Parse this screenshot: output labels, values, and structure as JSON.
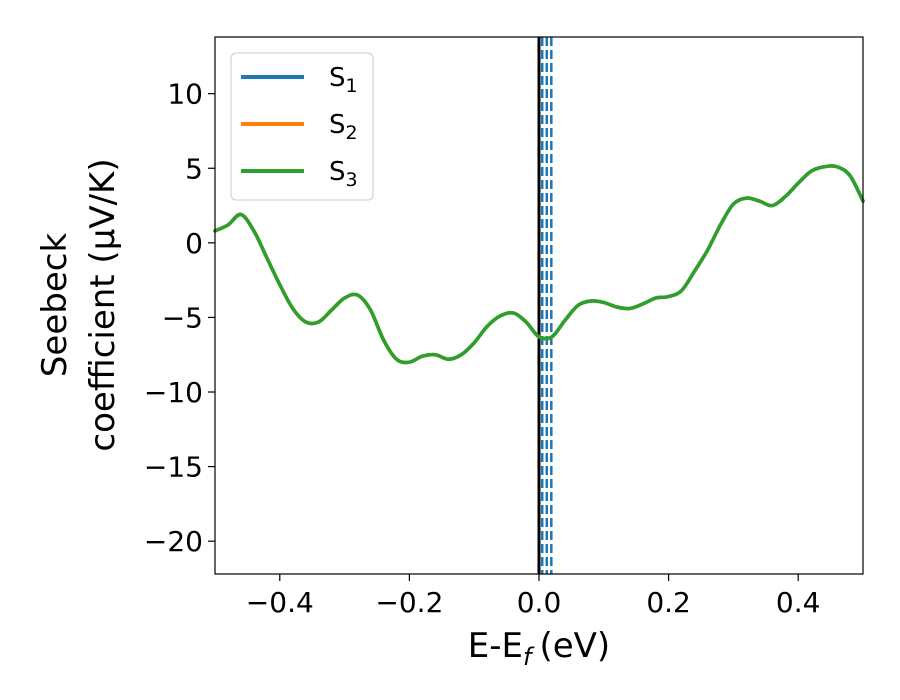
{
  "chart_data": {
    "type": "line",
    "xlabel": "E-E_f (eV)",
    "xlabel_parts": {
      "base": "E-E",
      "sub": "f",
      "unit": "(eV)"
    },
    "ylabel_line1": "Seebeck",
    "ylabel_line2": "coefficient  (μV/K)",
    "xlim": [
      -0.5,
      0.5
    ],
    "ylim": [
      -22.2,
      13.8
    ],
    "xticks": [
      -0.4,
      -0.2,
      0.0,
      0.2,
      0.4
    ],
    "xtick_labels": [
      "−0.4",
      "−0.2",
      "0.0",
      "0.2",
      "0.4"
    ],
    "yticks": [
      -20,
      -15,
      -10,
      -5,
      0,
      5,
      10
    ],
    "ytick_labels": [
      "−20",
      "−15",
      "−10",
      "−5",
      "0",
      "5",
      "10"
    ],
    "grid": false,
    "legend_position": "top-left",
    "x": [
      -0.5,
      -0.48,
      -0.46,
      -0.44,
      -0.42,
      -0.4,
      -0.38,
      -0.36,
      -0.34,
      -0.32,
      -0.3,
      -0.28,
      -0.26,
      -0.24,
      -0.22,
      -0.2,
      -0.18,
      -0.16,
      -0.14,
      -0.12,
      -0.1,
      -0.08,
      -0.06,
      -0.04,
      -0.02,
      0.0,
      0.02,
      0.04,
      0.06,
      0.08,
      0.1,
      0.12,
      0.14,
      0.16,
      0.18,
      0.2,
      0.22,
      0.24,
      0.26,
      0.28,
      0.3,
      0.32,
      0.34,
      0.36,
      0.38,
      0.4,
      0.42,
      0.44,
      0.46,
      0.48,
      0.5
    ],
    "series": [
      {
        "name": "S",
        "sub": "1",
        "color": "#1f77b4",
        "values": [
          0.8,
          1.2,
          1.9,
          0.8,
          -1.0,
          -2.8,
          -4.4,
          -5.3,
          -5.3,
          -4.5,
          -3.7,
          -3.5,
          -4.5,
          -6.5,
          -7.8,
          -8.0,
          -7.6,
          -7.5,
          -7.8,
          -7.5,
          -6.7,
          -5.6,
          -4.9,
          -4.7,
          -5.3,
          -6.3,
          -6.3,
          -5.2,
          -4.2,
          -3.9,
          -4.0,
          -4.3,
          -4.4,
          -4.1,
          -3.7,
          -3.6,
          -3.2,
          -1.9,
          -0.5,
          1.2,
          2.6,
          3.0,
          2.8,
          2.5,
          3.1,
          4.0,
          4.8,
          5.1,
          5.1,
          4.5,
          2.8
        ]
      },
      {
        "name": "S",
        "sub": "2",
        "color": "#ff7f0e",
        "values": [
          0.8,
          1.2,
          1.9,
          0.8,
          -1.0,
          -2.8,
          -4.4,
          -5.3,
          -5.3,
          -4.5,
          -3.7,
          -3.5,
          -4.5,
          -6.5,
          -7.8,
          -8.0,
          -7.6,
          -7.5,
          -7.8,
          -7.5,
          -6.7,
          -5.6,
          -4.9,
          -4.7,
          -5.3,
          -6.3,
          -6.3,
          -5.2,
          -4.2,
          -3.9,
          -4.0,
          -4.3,
          -4.4,
          -4.1,
          -3.7,
          -3.6,
          -3.2,
          -1.9,
          -0.5,
          1.2,
          2.6,
          3.0,
          2.8,
          2.5,
          3.1,
          4.0,
          4.8,
          5.1,
          5.1,
          4.5,
          2.8
        ]
      },
      {
        "name": "S",
        "sub": "3",
        "color": "#2ca02c",
        "values": [
          0.8,
          1.2,
          1.9,
          0.8,
          -1.0,
          -2.8,
          -4.4,
          -5.3,
          -5.3,
          -4.5,
          -3.7,
          -3.5,
          -4.5,
          -6.5,
          -7.8,
          -8.0,
          -7.6,
          -7.5,
          -7.8,
          -7.5,
          -6.7,
          -5.6,
          -4.9,
          -4.7,
          -5.3,
          -6.3,
          -6.3,
          -5.2,
          -4.2,
          -3.9,
          -4.0,
          -4.3,
          -4.4,
          -4.1,
          -3.7,
          -3.6,
          -3.2,
          -1.9,
          -0.5,
          1.2,
          2.6,
          3.0,
          2.8,
          2.5,
          3.1,
          4.0,
          4.8,
          5.1,
          5.1,
          4.5,
          2.8
        ]
      }
    ],
    "vlines": [
      {
        "x": 0.0,
        "style": "solid",
        "color": "#000000"
      },
      {
        "x": 0.005,
        "style": "dashed",
        "color": "#1f77b4"
      },
      {
        "x": 0.012,
        "style": "dashed",
        "color": "#1f77b4"
      },
      {
        "x": 0.019,
        "style": "dashed",
        "color": "#1f77b4"
      }
    ]
  }
}
